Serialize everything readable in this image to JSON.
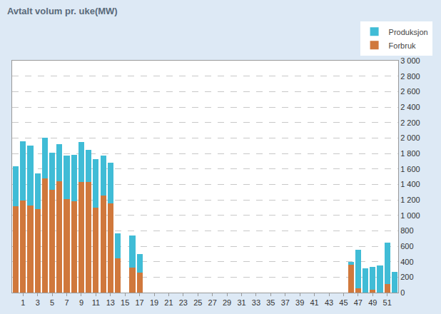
{
  "chart_data": {
    "type": "bar",
    "title": "Avtalt volum pr. uke(MW)",
    "stacked": true,
    "grid": true,
    "legend": "top-right",
    "categories": [
      null,
      1,
      null,
      3,
      null,
      5,
      null,
      7,
      null,
      9,
      null,
      11,
      null,
      13,
      null,
      15,
      null,
      17,
      null,
      19,
      null,
      21,
      null,
      23,
      null,
      25,
      null,
      27,
      null,
      29,
      null,
      31,
      null,
      33,
      null,
      35,
      null,
      37,
      null,
      39,
      null,
      41,
      null,
      43,
      null,
      45,
      null,
      47,
      null,
      49,
      null,
      51,
      null
    ],
    "series": [
      {
        "name": "Forbruk",
        "color": "#d0783c",
        "values": [
          1120,
          1190,
          1130,
          1080,
          1480,
          1330,
          1440,
          1210,
          1180,
          1430,
          1430,
          1100,
          1260,
          1150,
          440,
          0,
          320,
          260,
          0,
          0,
          0,
          0,
          0,
          0,
          0,
          0,
          0,
          0,
          0,
          0,
          0,
          0,
          0,
          0,
          0,
          0,
          0,
          0,
          0,
          0,
          0,
          0,
          0,
          0,
          0,
          0,
          360,
          60,
          0,
          40,
          0,
          110,
          0
        ]
      },
      {
        "name": "Produksjon",
        "color": "#40bcd6",
        "values": [
          510,
          770,
          770,
          460,
          520,
          480,
          480,
          560,
          600,
          520,
          420,
          630,
          510,
          530,
          330,
          0,
          420,
          240,
          0,
          0,
          0,
          0,
          0,
          0,
          0,
          0,
          0,
          0,
          0,
          0,
          0,
          0,
          0,
          0,
          0,
          0,
          0,
          0,
          0,
          0,
          0,
          0,
          0,
          0,
          0,
          0,
          40,
          490,
          310,
          290,
          350,
          540,
          270
        ]
      }
    ],
    "ylim": [
      0,
      3000
    ],
    "yticks": [
      0,
      200,
      400,
      600,
      800,
      {
        "value": 1000,
        "label": "1 000"
      },
      {
        "value": 1200,
        "label": "1 200"
      },
      {
        "value": 1400,
        "label": "1 400"
      },
      {
        "value": 1600,
        "label": "1 600"
      },
      {
        "value": 1800,
        "label": "1 800"
      },
      {
        "value": 2000,
        "label": "2 000"
      },
      {
        "value": 2200,
        "label": "2 200"
      },
      {
        "value": 2400,
        "label": "2 400"
      },
      {
        "value": 2600,
        "label": "2 600"
      },
      {
        "value": 2800,
        "label": "2 800"
      },
      {
        "value": 3000,
        "label": "3 000"
      }
    ]
  }
}
